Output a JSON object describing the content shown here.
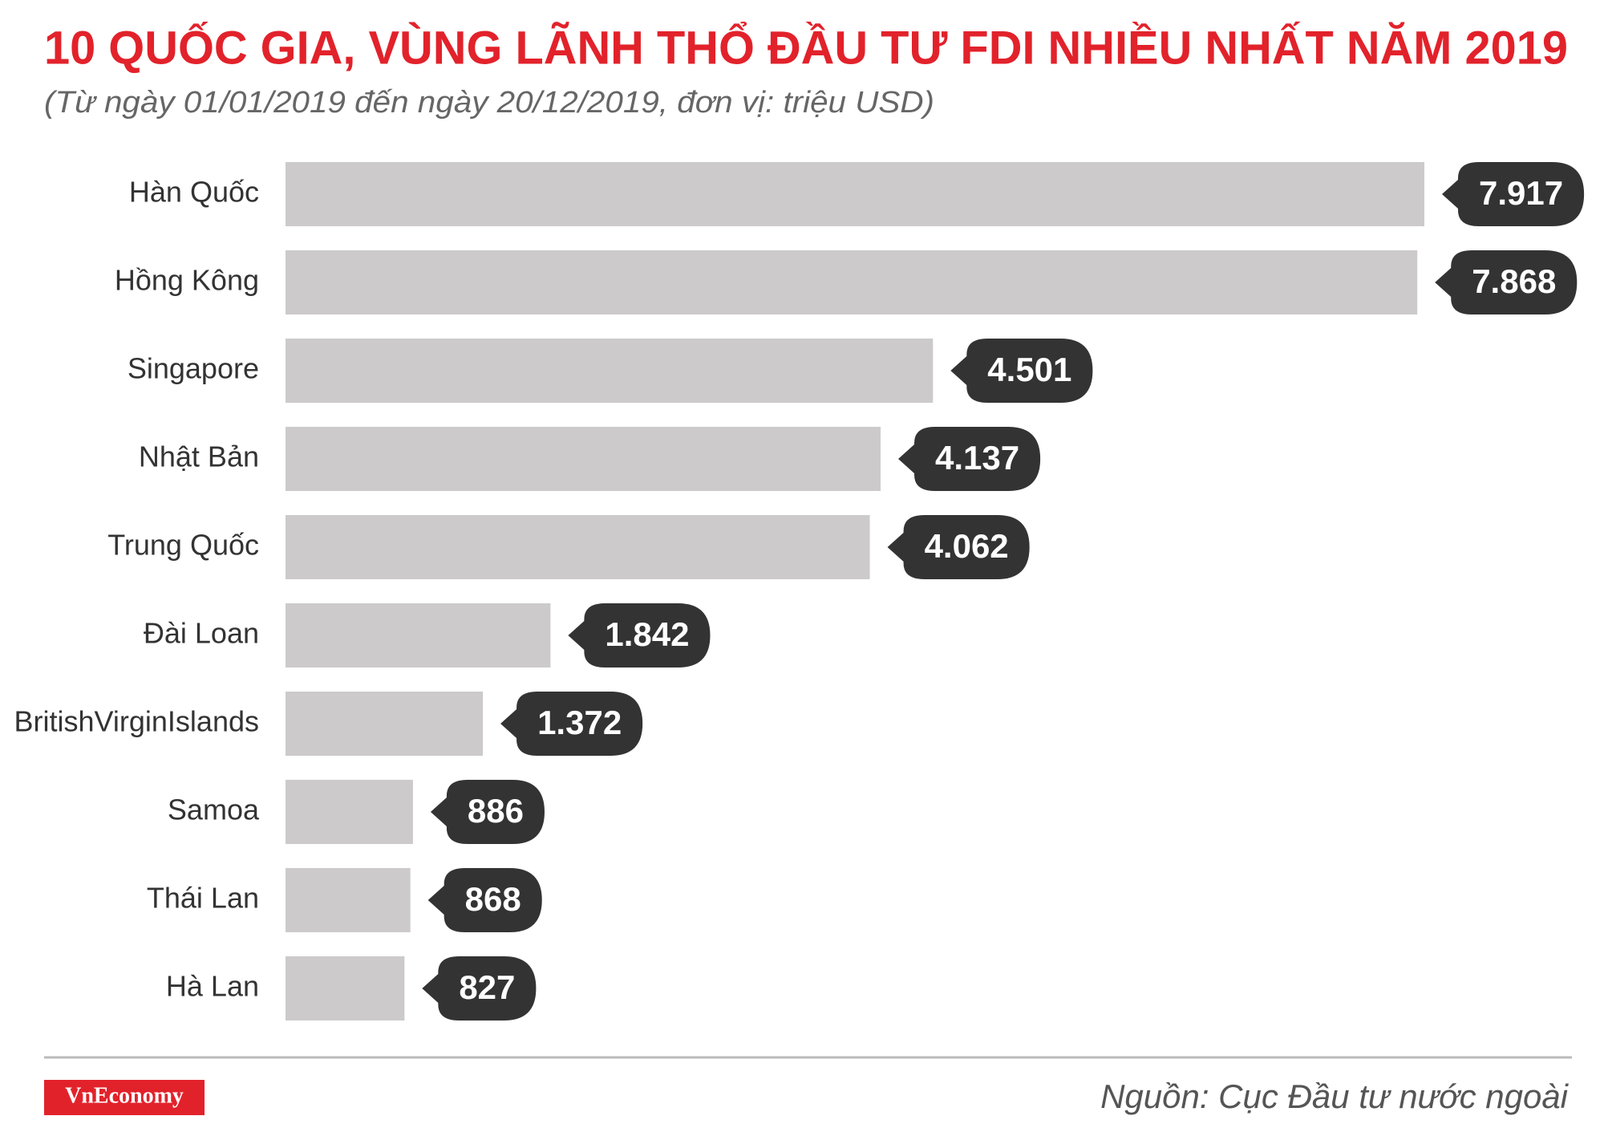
{
  "chart_data": {
    "type": "hbar",
    "title": "10 QUỐC GIA, VÙNG LÃNH THỔ ĐẦU TƯ FDI NHIỀU NHẤT NĂM 2019",
    "subtitle": "(Từ ngày 01/01/2019 đến ngày 20/12/2019, đơn vị: triệu USD)",
    "categories": [
      "Hàn Quốc",
      "Hồng Kông",
      "Singapore",
      "Nhật Bản",
      "Trung Quốc",
      "Đài Loan",
      "BritishVirginIslands",
      "Samoa",
      "Thái Lan",
      "Hà Lan"
    ],
    "values": [
      7917,
      7868,
      4501,
      4137,
      4062,
      1842,
      1372,
      886,
      868,
      827
    ],
    "value_labels": [
      "7.917",
      "7.868",
      "4.501",
      "4.137",
      "4.062",
      "1.842",
      "1.372",
      "886",
      "868",
      "827"
    ],
    "color": "#cccacb",
    "label_color": "#333333",
    "brand": "VnEconomy",
    "source": "Nguồn: Cục Đầu tư nước ngoài"
  }
}
